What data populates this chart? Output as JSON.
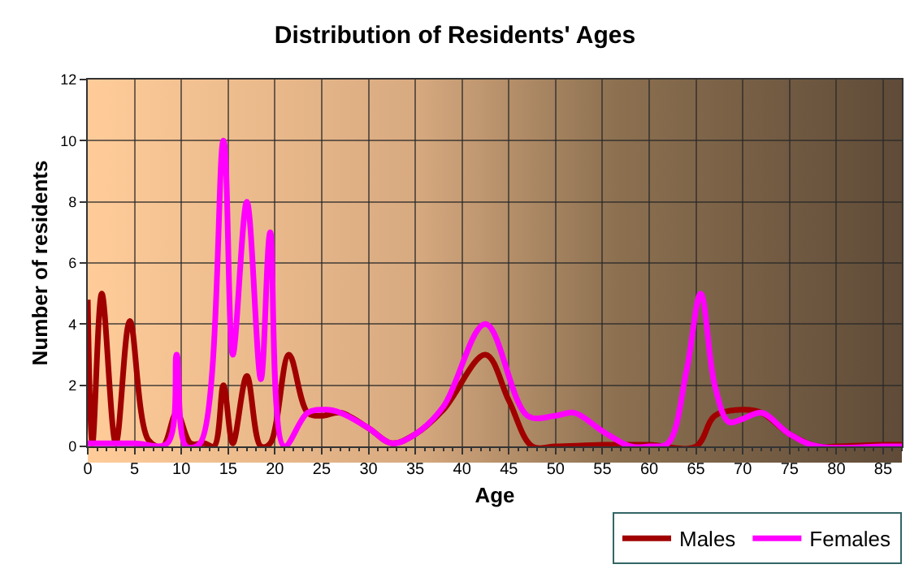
{
  "chart_data": {
    "type": "line",
    "title": "Distribution of Residents' Ages",
    "xlabel": "Age",
    "ylabel": "Number of residents",
    "xlim": [
      0,
      87
    ],
    "xticks": [
      0,
      5,
      10,
      15,
      20,
      25,
      30,
      35,
      40,
      45,
      50,
      55,
      60,
      65,
      70,
      75,
      80,
      85
    ],
    "ylim": [
      0,
      12
    ],
    "yticks": [
      0,
      2,
      4,
      6,
      8,
      10,
      12
    ],
    "grid": true,
    "legend": "bottom right",
    "marker": "none",
    "line_style": "solid",
    "series": [
      {
        "name": "Males",
        "color": "#a00000",
        "x": [
          0,
          0.5,
          1.5,
          3,
          4.5,
          6.5,
          8,
          9.5,
          11,
          12.5,
          13.5,
          14.5,
          15.5,
          17,
          18.5,
          19.5,
          21.5,
          23.5,
          25,
          27,
          30,
          32.5,
          35,
          38,
          42.5,
          45,
          47.5,
          50,
          55,
          60,
          65,
          67,
          70,
          72,
          75,
          78,
          80,
          85,
          87
        ],
        "values": [
          4.8,
          0.1,
          5,
          0.1,
          4.1,
          0.2,
          0,
          1.1,
          0.1,
          0.1,
          0,
          2,
          0.1,
          2.3,
          0,
          0.1,
          3,
          1.1,
          1,
          1.1,
          0.6,
          0.1,
          0.4,
          1.2,
          3,
          1.5,
          0,
          0,
          0.05,
          0.05,
          0,
          1,
          1.2,
          1.1,
          0.4,
          0,
          0,
          0.05,
          0.05
        ]
      },
      {
        "name": "Females",
        "color": "#ff00ff",
        "x": [
          0,
          5,
          8.5,
          9.5,
          10.5,
          12,
          14.5,
          15.5,
          17,
          18.5,
          19.5,
          21,
          23.5,
          25.5,
          27,
          30,
          32.5,
          35,
          38,
          42.5,
          47,
          50,
          52,
          55,
          58,
          60,
          62,
          64,
          65.5,
          67,
          68.5,
          70,
          72,
          75,
          78,
          85,
          87
        ],
        "values": [
          0.1,
          0.1,
          0.1,
          3,
          0,
          0.1,
          10,
          3,
          8,
          2.2,
          7,
          0,
          1.1,
          1.2,
          1.1,
          0.6,
          0.1,
          0.4,
          1.3,
          4,
          1,
          1,
          1.1,
          0.5,
          0,
          0,
          0.1,
          2.5,
          5,
          2,
          0.8,
          0.9,
          1.1,
          0.4,
          0,
          0,
          0
        ]
      }
    ]
  }
}
